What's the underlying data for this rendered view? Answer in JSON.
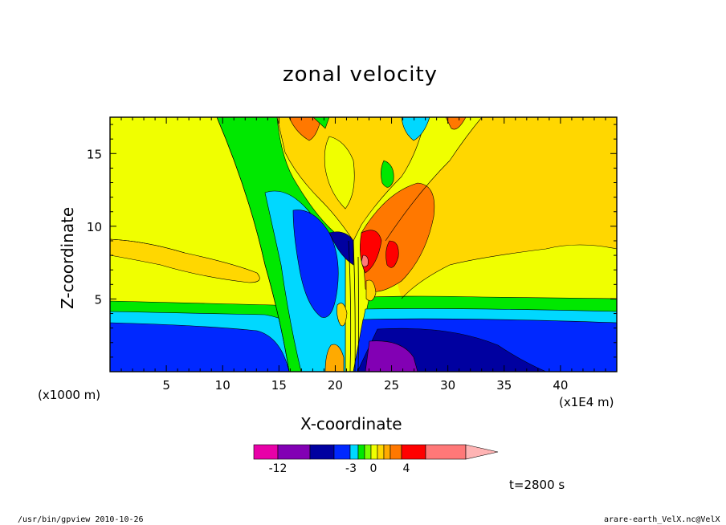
{
  "chart_data": {
    "type": "heatmap",
    "title": "zonal velocity",
    "xlabel": "X-coordinate",
    "ylabel": "Z-coordinate",
    "xunit": "(x1E4 m)",
    "yunit": "(x1000 m)",
    "xlim": [
      0,
      45
    ],
    "ylim": [
      0,
      17.5
    ],
    "x_ticks": [
      5,
      10,
      15,
      20,
      25,
      30,
      35,
      40
    ],
    "y_ticks": [
      5,
      10,
      15
    ],
    "colorbar": {
      "levels": [
        -15,
        -12,
        -9,
        -6,
        -4,
        -3,
        -2,
        -1,
        0,
        1,
        2,
        3,
        4,
        6,
        10
      ],
      "tick_labels": [
        "-12",
        "-3",
        "0",
        "4"
      ],
      "colors": [
        "#e800a8",
        "#8200b4",
        "#0000a0",
        "#0028ff",
        "#00d8ff",
        "#00e800",
        "#78ff00",
        "#f0ff00",
        "#ffd700",
        "#ffaa00",
        "#ff7800",
        "#ff0000",
        "#ff7878",
        "#ffb4b4"
      ]
    },
    "time_label": "t=2800 s"
  },
  "footer": {
    "left": "/usr/bin/gpview   2010-10-26",
    "right": "arare-earth_VelX.nc@VelX"
  }
}
